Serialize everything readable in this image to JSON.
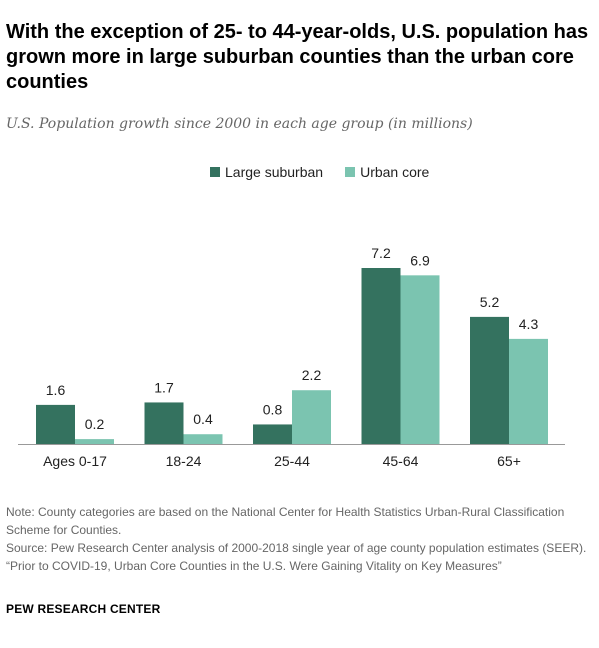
{
  "header": {
    "title": "With the exception of 25- to 44-year-olds, U.S. population has grown more in large suburban counties than the urban core counties",
    "subtitle": "U.S. Population growth since 2000 in each age group (in millions)"
  },
  "legend": {
    "items": [
      {
        "label": "Large suburban",
        "color": "#34725f"
      },
      {
        "label": "Urban core",
        "color": "#7bc4b0"
      }
    ]
  },
  "chart_data": {
    "type": "bar",
    "categories": [
      "Ages 0-17",
      "18-24",
      "25-44",
      "45-64",
      "65+"
    ],
    "series": [
      {
        "name": "Large suburban",
        "values": [
          1.6,
          1.7,
          0.8,
          7.2,
          5.2
        ],
        "labels": [
          "1.6",
          "1.7",
          "0.8",
          "7.2",
          "5.2"
        ],
        "color": "#34725f"
      },
      {
        "name": "Urban core",
        "values": [
          0.2,
          0.4,
          2.2,
          6.9,
          4.3
        ],
        "labels": [
          "0.2",
          "0.4",
          "2.2",
          "6.9",
          "4.3"
        ],
        "color": "#7bc4b0"
      }
    ],
    "ylim": [
      0,
      7.2
    ],
    "legend_position": "top-center",
    "grid": false
  },
  "notes": {
    "note": "Note: County categories are based on the National Center for Health Statistics Urban-Rural Classification Scheme for Counties.",
    "source": "Source: Pew Research Center analysis of 2000-2018 single year of age county population estimates (SEER).",
    "report": "“Prior to COVID-19, Urban Core Counties in the U.S. Were Gaining Vitality on Key Measures”"
  },
  "footer": {
    "brand": "PEW RESEARCH CENTER"
  }
}
